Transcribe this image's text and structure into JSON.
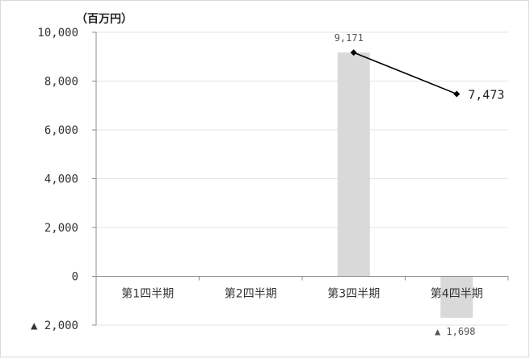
{
  "chart_data": {
    "type": "bar",
    "unit_label": "（百万円）",
    "categories": [
      "第1四半期",
      "第2四半期",
      "第3四半期",
      "第4四半期"
    ],
    "ylim": [
      -2000,
      10000
    ],
    "y_ticks": [
      {
        "value": 10000,
        "label": "10,000"
      },
      {
        "value": 8000,
        "label": "8,000"
      },
      {
        "value": 6000,
        "label": "6,000"
      },
      {
        "value": 4000,
        "label": "4,000"
      },
      {
        "value": 2000,
        "label": "2,000"
      },
      {
        "value": 0,
        "label": "0"
      },
      {
        "value": -2000,
        "label": "▲ 2,000"
      }
    ],
    "grid": true,
    "bar_series": {
      "values": [
        null,
        null,
        9171,
        -1698
      ],
      "labels": [
        "",
        "",
        "9,171",
        "▲ 1,698"
      ],
      "color": "#d9d9d9"
    },
    "line_series": {
      "values": [
        null,
        null,
        9171,
        7473
      ],
      "labels": [
        "",
        "",
        "",
        "7,473"
      ],
      "color": "#000000",
      "marker": "diamond"
    }
  }
}
